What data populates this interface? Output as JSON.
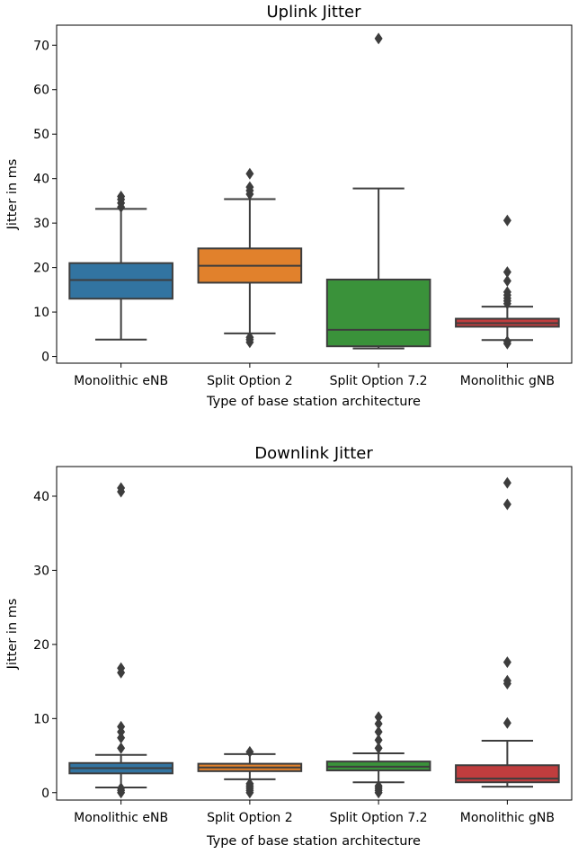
{
  "chart_data": [
    {
      "type": "boxplot",
      "title": "Uplink Jitter",
      "xlabel": "Type of base station architecture",
      "ylabel": "Jitter in ms",
      "ylim": [
        -1.5,
        74.5
      ],
      "yticks": [
        0,
        10,
        20,
        30,
        40,
        50,
        60,
        70
      ],
      "categories": [
        "Monolithic eNB",
        "Split Option 2",
        "Split Option 7.2",
        "Monolithic gNB"
      ],
      "colors": [
        "#3274a1",
        "#e1812c",
        "#3a923a",
        "#c03d3e"
      ],
      "boxes": [
        {
          "whisker_low": 3.8,
          "q1": 13.0,
          "median": 17.2,
          "q3": 21.0,
          "whisker_high": 33.2,
          "fliers": [
            33.6,
            34.5,
            35.3,
            36.0
          ]
        },
        {
          "whisker_low": 5.2,
          "q1": 16.6,
          "median": 20.4,
          "q3": 24.3,
          "whisker_high": 35.4,
          "fliers": [
            3.2,
            3.8,
            4.3,
            36.5,
            37.3,
            38.1,
            41.1
          ]
        },
        {
          "whisker_low": 1.8,
          "q1": 2.3,
          "median": 6.0,
          "q3": 17.3,
          "whisker_high": 37.8,
          "fliers": [
            71.5
          ]
        },
        {
          "whisker_low": 3.7,
          "q1": 6.7,
          "median": 7.5,
          "q3": 8.5,
          "whisker_high": 11.2,
          "fliers": [
            2.9,
            3.4,
            11.9,
            12.5,
            13.1,
            13.8,
            14.5,
            17.0,
            19.0,
            30.6
          ]
        }
      ]
    },
    {
      "type": "boxplot",
      "title": "Downlink Jitter",
      "xlabel": "Type of base station architecture",
      "ylabel": "Jitter in ms",
      "ylim": [
        -1.0,
        44.0
      ],
      "yticks": [
        0,
        10,
        20,
        30,
        40
      ],
      "categories": [
        "Monolithic eNB",
        "Split Option 2",
        "Split Option 7.2",
        "Monolithic gNB"
      ],
      "colors": [
        "#3274a1",
        "#e1812c",
        "#3a923a",
        "#c03d3e"
      ],
      "boxes": [
        {
          "whisker_low": 0.7,
          "q1": 2.6,
          "median": 3.3,
          "q3": 4.0,
          "whisker_high": 5.1,
          "fliers": [
            0.0,
            0.3,
            0.6,
            6.0,
            7.4,
            8.2,
            8.9,
            16.2,
            16.8,
            40.6,
            41.1
          ]
        },
        {
          "whisker_low": 1.8,
          "q1": 2.9,
          "median": 3.4,
          "q3": 3.9,
          "whisker_high": 5.2,
          "fliers": [
            0.0,
            0.3,
            0.6,
            0.9,
            1.2,
            5.5
          ]
        },
        {
          "whisker_low": 1.4,
          "q1": 3.0,
          "median": 3.5,
          "q3": 4.2,
          "whisker_high": 5.3,
          "fliers": [
            0.0,
            0.3,
            0.6,
            0.9,
            6.0,
            7.1,
            8.2,
            9.3,
            10.2
          ]
        },
        {
          "whisker_low": 0.8,
          "q1": 1.4,
          "median": 1.9,
          "q3": 3.7,
          "whisker_high": 7.0,
          "fliers": [
            9.4,
            14.7,
            15.1,
            17.6,
            38.9,
            41.8
          ]
        }
      ]
    }
  ]
}
